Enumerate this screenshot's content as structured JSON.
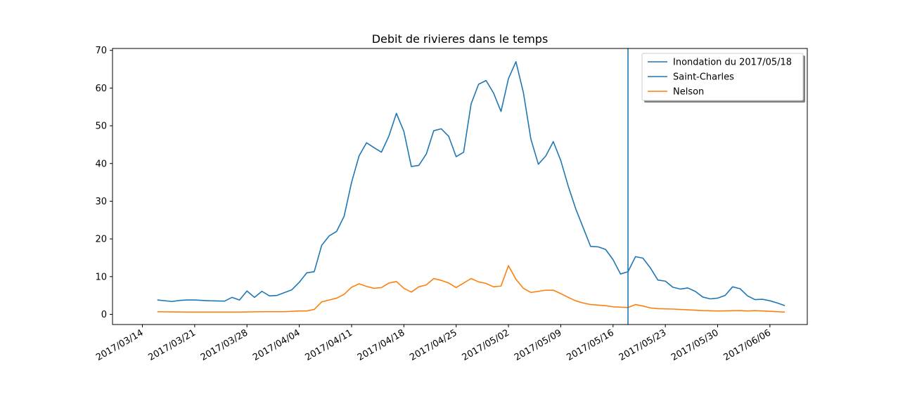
{
  "chart_data": {
    "type": "line",
    "title": "Debit de rivieres dans le temps",
    "xlabel": "",
    "ylabel": "",
    "x_ticks": [
      "2017/03/14",
      "2017/03/21",
      "2017/03/28",
      "2017/04/04",
      "2017/04/11",
      "2017/04/18",
      "2017/04/25",
      "2017/05/02",
      "2017/05/09",
      "2017/05/16",
      "2017/05/23",
      "2017/05/30",
      "2017/06/06"
    ],
    "y_ticks": [
      0,
      10,
      20,
      30,
      40,
      50,
      60,
      70
    ],
    "xlim": [
      "2017/03/10",
      "2017/06/11"
    ],
    "ylim": [
      -2.7,
      70.5
    ],
    "grid": false,
    "legend_position": "top-right",
    "vline": {
      "label": "Inondation du 2017/05/18",
      "x": "2017/05/18",
      "color": "#1f77b4"
    },
    "series": [
      {
        "name": "Saint-Charles",
        "color": "#1f77b4",
        "points": [
          [
            "2017/03/16",
            3.8
          ],
          [
            "2017/03/18",
            3.4
          ],
          [
            "2017/03/19",
            3.7
          ],
          [
            "2017/03/20",
            3.8
          ],
          [
            "2017/03/21",
            3.8
          ],
          [
            "2017/03/22",
            3.7
          ],
          [
            "2017/03/23",
            3.6
          ],
          [
            "2017/03/25",
            3.5
          ],
          [
            "2017/03/26",
            4.5
          ],
          [
            "2017/03/27",
            3.8
          ],
          [
            "2017/03/28",
            6.2
          ],
          [
            "2017/03/29",
            4.5
          ],
          [
            "2017/03/30",
            6.1
          ],
          [
            "2017/03/31",
            4.9
          ],
          [
            "2017/04/01",
            5.0
          ],
          [
            "2017/04/03",
            6.5
          ],
          [
            "2017/04/04",
            8.5
          ],
          [
            "2017/04/05",
            11.0
          ],
          [
            "2017/04/06",
            11.3
          ],
          [
            "2017/04/07",
            18.3
          ],
          [
            "2017/04/08",
            20.8
          ],
          [
            "2017/04/09",
            22.0
          ],
          [
            "2017/04/10",
            26.0
          ],
          [
            "2017/04/11",
            35.0
          ],
          [
            "2017/04/12",
            42.0
          ],
          [
            "2017/04/13",
            45.5
          ],
          [
            "2017/04/14",
            44.2
          ],
          [
            "2017/04/15",
            43.0
          ],
          [
            "2017/04/16",
            47.3
          ],
          [
            "2017/04/17",
            53.3
          ],
          [
            "2017/04/18",
            48.5
          ],
          [
            "2017/04/19",
            39.2
          ],
          [
            "2017/04/20",
            39.5
          ],
          [
            "2017/04/21",
            42.5
          ],
          [
            "2017/04/22",
            48.7
          ],
          [
            "2017/04/23",
            49.2
          ],
          [
            "2017/04/24",
            47.2
          ],
          [
            "2017/04/25",
            41.8
          ],
          [
            "2017/04/26",
            43.0
          ],
          [
            "2017/04/27",
            55.8
          ],
          [
            "2017/04/28",
            61.0
          ],
          [
            "2017/04/29",
            62.0
          ],
          [
            "2017/04/30",
            58.7
          ],
          [
            "2017/05/01",
            53.8
          ],
          [
            "2017/05/02",
            62.5
          ],
          [
            "2017/05/03",
            67.0
          ],
          [
            "2017/05/04",
            58.8
          ],
          [
            "2017/05/05",
            46.5
          ],
          [
            "2017/05/06",
            39.8
          ],
          [
            "2017/05/07",
            42.0
          ],
          [
            "2017/05/08",
            45.8
          ],
          [
            "2017/05/09",
            40.8
          ],
          [
            "2017/05/10",
            34.0
          ],
          [
            "2017/05/11",
            28.0
          ],
          [
            "2017/05/12",
            23.0
          ],
          [
            "2017/05/13",
            18.0
          ],
          [
            "2017/05/14",
            17.9
          ],
          [
            "2017/05/15",
            17.2
          ],
          [
            "2017/05/16",
            14.5
          ],
          [
            "2017/05/17",
            10.7
          ],
          [
            "2017/05/18",
            11.3
          ],
          [
            "2017/05/19",
            15.3
          ],
          [
            "2017/05/20",
            14.9
          ],
          [
            "2017/05/21",
            12.3
          ],
          [
            "2017/05/22",
            9.1
          ],
          [
            "2017/05/23",
            8.8
          ],
          [
            "2017/05/24",
            7.2
          ],
          [
            "2017/05/25",
            6.7
          ],
          [
            "2017/05/26",
            7.0
          ],
          [
            "2017/05/27",
            6.1
          ],
          [
            "2017/05/28",
            4.6
          ],
          [
            "2017/05/29",
            4.1
          ],
          [
            "2017/05/30",
            4.3
          ],
          [
            "2017/05/31",
            5.0
          ],
          [
            "2017/06/01",
            7.3
          ],
          [
            "2017/06/02",
            6.8
          ],
          [
            "2017/06/03",
            4.9
          ],
          [
            "2017/06/04",
            3.9
          ],
          [
            "2017/06/05",
            4.0
          ],
          [
            "2017/06/06",
            3.6
          ],
          [
            "2017/06/07",
            3.0
          ],
          [
            "2017/06/08",
            2.3
          ]
        ]
      },
      {
        "name": "Nelson",
        "color": "#ff7f0e",
        "points": [
          [
            "2017/03/16",
            0.7
          ],
          [
            "2017/03/20",
            0.6
          ],
          [
            "2017/03/23",
            0.6
          ],
          [
            "2017/03/27",
            0.6
          ],
          [
            "2017/03/30",
            0.7
          ],
          [
            "2017/04/02",
            0.7
          ],
          [
            "2017/04/04",
            0.9
          ],
          [
            "2017/04/05",
            0.9
          ],
          [
            "2017/04/06",
            1.3
          ],
          [
            "2017/04/07",
            3.3
          ],
          [
            "2017/04/08",
            3.8
          ],
          [
            "2017/04/09",
            4.3
          ],
          [
            "2017/04/10",
            5.3
          ],
          [
            "2017/04/11",
            7.2
          ],
          [
            "2017/04/12",
            8.1
          ],
          [
            "2017/04/13",
            7.4
          ],
          [
            "2017/04/14",
            6.9
          ],
          [
            "2017/04/15",
            7.1
          ],
          [
            "2017/04/16",
            8.3
          ],
          [
            "2017/04/17",
            8.7
          ],
          [
            "2017/04/18",
            6.9
          ],
          [
            "2017/04/19",
            5.9
          ],
          [
            "2017/04/20",
            7.3
          ],
          [
            "2017/04/21",
            7.8
          ],
          [
            "2017/04/22",
            9.5
          ],
          [
            "2017/04/23",
            9.0
          ],
          [
            "2017/04/24",
            8.3
          ],
          [
            "2017/04/25",
            7.1
          ],
          [
            "2017/04/26",
            8.3
          ],
          [
            "2017/04/27",
            9.5
          ],
          [
            "2017/04/28",
            8.6
          ],
          [
            "2017/04/29",
            8.2
          ],
          [
            "2017/04/30",
            7.3
          ],
          [
            "2017/05/01",
            7.5
          ],
          [
            "2017/05/02",
            12.9
          ],
          [
            "2017/05/03",
            9.3
          ],
          [
            "2017/05/04",
            6.9
          ],
          [
            "2017/05/05",
            5.8
          ],
          [
            "2017/05/06",
            6.1
          ],
          [
            "2017/05/07",
            6.4
          ],
          [
            "2017/05/08",
            6.4
          ],
          [
            "2017/05/09",
            5.5
          ],
          [
            "2017/05/10",
            4.5
          ],
          [
            "2017/05/11",
            3.6
          ],
          [
            "2017/05/12",
            3.0
          ],
          [
            "2017/05/13",
            2.6
          ],
          [
            "2017/05/15",
            2.3
          ],
          [
            "2017/05/16",
            2.0
          ],
          [
            "2017/05/17",
            1.9
          ],
          [
            "2017/05/18",
            1.8
          ],
          [
            "2017/05/19",
            2.6
          ],
          [
            "2017/05/20",
            2.2
          ],
          [
            "2017/05/21",
            1.7
          ],
          [
            "2017/05/22",
            1.5
          ],
          [
            "2017/05/24",
            1.4
          ],
          [
            "2017/05/26",
            1.2
          ],
          [
            "2017/05/28",
            1.0
          ],
          [
            "2017/05/30",
            0.9
          ],
          [
            "2017/06/02",
            1.0
          ],
          [
            "2017/06/03",
            0.9
          ],
          [
            "2017/06/04",
            1.0
          ],
          [
            "2017/06/05",
            0.9
          ],
          [
            "2017/06/06",
            0.8
          ],
          [
            "2017/06/07",
            0.7
          ],
          [
            "2017/06/08",
            0.6
          ]
        ]
      }
    ]
  }
}
